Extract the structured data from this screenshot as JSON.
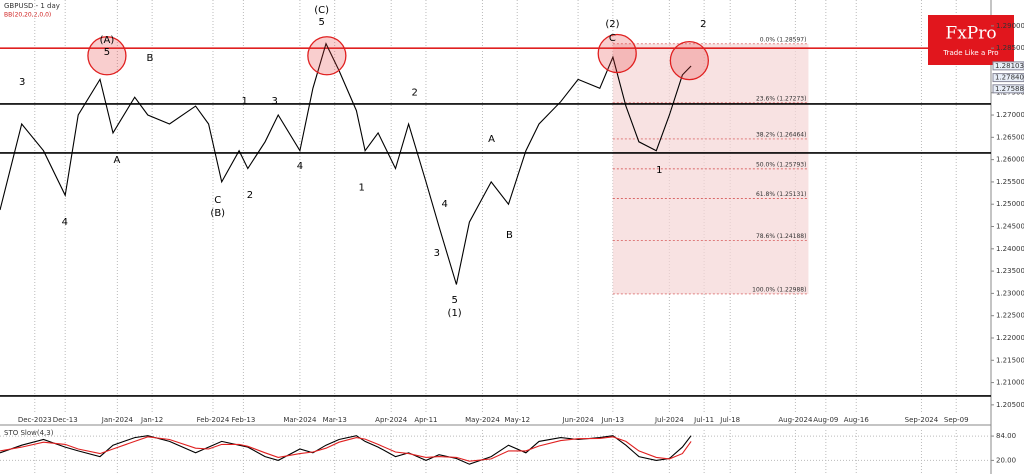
{
  "logo": {
    "name": "FxPro",
    "tagline": "Trade Like a Pro"
  },
  "chart_data": [
    {
      "type": "line",
      "title": "GBPUSD - 1 day",
      "subtitle": "BB(20,20,2,0,0)",
      "color": "#000000",
      "x": [
        0,
        5,
        10,
        15,
        18,
        23,
        26,
        31,
        34,
        39,
        45,
        48,
        51,
        55,
        57,
        61,
        64,
        69,
        72,
        75,
        78,
        82,
        84,
        87,
        91,
        94,
        98,
        101,
        105,
        108,
        113,
        117,
        121,
        124,
        129,
        133,
        138,
        141,
        144,
        147,
        151,
        154,
        157,
        159
      ],
      "values": [
        1.2487,
        1.268,
        1.262,
        1.252,
        1.27,
        1.278,
        1.266,
        1.274,
        1.27,
        1.268,
        1.272,
        1.268,
        1.255,
        1.262,
        1.258,
        1.264,
        1.27,
        1.262,
        1.276,
        1.286,
        1.28,
        1.271,
        1.262,
        1.266,
        1.258,
        1.268,
        1.255,
        1.245,
        1.232,
        1.246,
        1.255,
        1.25,
        1.262,
        1.268,
        1.273,
        1.278,
        1.276,
        1.283,
        1.272,
        1.264,
        1.262,
        1.27,
        1.279,
        1.281
      ],
      "xlim": [
        0,
        228
      ],
      "ylim": [
        1.2034,
        1.2958
      ],
      "xticks": [
        {
          "value": 8,
          "label": "Dec-2023"
        },
        {
          "value": 15,
          "label": "Dec-13"
        },
        {
          "value": 27,
          "label": "Jan-2024"
        },
        {
          "value": 35,
          "label": "Jan-12"
        },
        {
          "value": 49,
          "label": "Feb-2024"
        },
        {
          "value": 56,
          "label": "Feb-13"
        },
        {
          "value": 69,
          "label": "Mar-2024"
        },
        {
          "value": 77,
          "label": "Mar-13"
        },
        {
          "value": 90,
          "label": "Apr-2024"
        },
        {
          "value": 98,
          "label": "Apr-11"
        },
        {
          "value": 111,
          "label": "May-2024"
        },
        {
          "value": 119,
          "label": "May-12"
        },
        {
          "value": 133,
          "label": "Jun-2024"
        },
        {
          "value": 141,
          "label": "Jun-13"
        },
        {
          "value": 154,
          "label": "Jul-2024"
        },
        {
          "value": 162,
          "label": "Jul-11"
        },
        {
          "value": 168,
          "label": "Jul-18"
        },
        {
          "value": 183,
          "label": "Aug-2024"
        },
        {
          "value": 190,
          "label": "Aug-09"
        },
        {
          "value": 197,
          "label": "Aug-16"
        },
        {
          "value": 212,
          "label": "Sep-2024"
        },
        {
          "value": 220,
          "label": "Sep-09"
        }
      ],
      "yticks": [
        {
          "value": 1.205,
          "label": "1.20500"
        },
        {
          "value": 1.21,
          "label": "1.21000"
        },
        {
          "value": 1.215,
          "label": "1.21500"
        },
        {
          "value": 1.22,
          "label": "1.22000"
        },
        {
          "value": 1.225,
          "label": "1.22500"
        },
        {
          "value": 1.23,
          "label": "1.23000"
        },
        {
          "value": 1.235,
          "label": "1.23500"
        },
        {
          "value": 1.24,
          "label": "1.24000"
        },
        {
          "value": 1.245,
          "label": "1.24500"
        },
        {
          "value": 1.25,
          "label": "1.25000"
        },
        {
          "value": 1.255,
          "label": "1.25500"
        },
        {
          "value": 1.26,
          "label": "1.26000"
        },
        {
          "value": 1.265,
          "label": "1.26500"
        },
        {
          "value": 1.27,
          "label": "1.27000"
        },
        {
          "value": 1.275,
          "label": "1.27500"
        },
        {
          "value": 1.285,
          "label": "1.28500"
        },
        {
          "value": 1.29,
          "label": "1.29000"
        }
      ],
      "price_tags": [
        1.28103,
        {
          "value": 1.2784,
          "label": "1.27840"
        },
        1.27588
      ],
      "levels": [
        {
          "value": 1.285,
          "color": "#e02020"
        },
        {
          "value": 1.2725,
          "color": "#000000"
        },
        {
          "value": 1.2615,
          "color": "#000000"
        },
        {
          "value": 1.207,
          "color": "#000000"
        }
      ],
      "fib_x": [
        141,
        186
      ],
      "fib_levels": [
        {
          "label": "0.0% (1.28597)",
          "value": 1.28597
        },
        {
          "label": "23.6% (1.27273)",
          "value": 1.27273
        },
        {
          "label": "38.2% (1.26464)",
          "value": 1.26464
        },
        {
          "label": "50.0% (1.25793)",
          "value": 1.25793
        },
        {
          "label": "61.8% (1.25131)",
          "value": 1.25131
        },
        {
          "label": "78.6% (1.24188)",
          "value": 1.24188
        },
        {
          "label": "100.0% (1.22988)",
          "value": 1.22988
        }
      ],
      "annotations": [
        {
          "text": "(A)",
          "x": 24.6,
          "y": 1.2868
        },
        {
          "text": "5",
          "x": 24.6,
          "y": 1.2841
        },
        {
          "text": "3",
          "x": 5.1,
          "y": 1.2774
        },
        {
          "text": "B",
          "x": 34.5,
          "y": 1.2828
        },
        {
          "text": "A",
          "x": 26.9,
          "y": 1.2599
        },
        {
          "text": "C",
          "x": 50.1,
          "y": 1.251
        },
        {
          "text": "(B)",
          "x": 50.1,
          "y": 1.248
        },
        {
          "text": "2",
          "x": 57.5,
          "y": 1.2521
        },
        {
          "text": "1",
          "x": 56.3,
          "y": 1.2732
        },
        {
          "text": "3",
          "x": 63.2,
          "y": 1.2732
        },
        {
          "text": "4",
          "x": 69,
          "y": 1.2586
        },
        {
          "text": "(C)",
          "x": 74,
          "y": 1.2936
        },
        {
          "text": "5",
          "x": 74,
          "y": 1.2909
        },
        {
          "text": "2",
          "x": 95.4,
          "y": 1.275
        },
        {
          "text": "1",
          "x": 83.2,
          "y": 1.2537
        },
        {
          "text": "4",
          "x": 102.3,
          "y": 1.2501
        },
        {
          "text": "3",
          "x": 100.5,
          "y": 1.2391
        },
        {
          "text": "5",
          "x": 104.6,
          "y": 1.2285
        },
        {
          "text": "(1)",
          "x": 104.6,
          "y": 1.2256
        },
        {
          "text": "A",
          "x": 113.1,
          "y": 1.2646
        },
        {
          "text": "B",
          "x": 117.2,
          "y": 1.2431
        },
        {
          "text": "(2)",
          "x": 140.9,
          "y": 1.2904
        },
        {
          "text": "C",
          "x": 140.9,
          "y": 1.2873
        },
        {
          "text": "2",
          "x": 161.8,
          "y": 1.2904
        },
        {
          "text": "4",
          "x": 14.9,
          "y": 1.246
        },
        {
          "text": "1",
          "x": 151.7,
          "y": 1.2577
        }
      ],
      "highlights": [
        {
          "x": 24.6,
          "y": 1.2833
        },
        {
          "x": 75.2,
          "y": 1.2833
        },
        {
          "x": 142,
          "y": 1.2838
        },
        {
          "x": 158.6,
          "y": 1.2822
        }
      ]
    },
    {
      "type": "line",
      "title": "STO Slow(4,3)",
      "x": [
        0,
        5,
        10,
        15,
        18,
        23,
        26,
        31,
        34,
        39,
        45,
        48,
        51,
        55,
        57,
        61,
        64,
        69,
        72,
        75,
        78,
        82,
        84,
        87,
        91,
        94,
        98,
        101,
        105,
        108,
        113,
        117,
        121,
        124,
        129,
        133,
        138,
        141,
        144,
        147,
        151,
        154,
        157,
        159
      ],
      "series": [
        {
          "color": "#000000",
          "values": [
            40,
            60,
            75,
            55,
            45,
            30,
            60,
            80,
            85,
            70,
            40,
            55,
            70,
            60,
            55,
            30,
            20,
            50,
            40,
            60,
            75,
            85,
            70,
            55,
            30,
            40,
            20,
            35,
            25,
            10,
            30,
            60,
            40,
            70,
            80,
            75,
            80,
            85,
            60,
            30,
            20,
            25,
            55,
            85
          ]
        },
        {
          "color": "#e02020",
          "values": [
            45,
            55,
            68,
            62,
            50,
            38,
            50,
            70,
            82,
            75,
            52,
            50,
            62,
            62,
            57,
            40,
            28,
            38,
            42,
            52,
            68,
            80,
            76,
            62,
            42,
            38,
            28,
            30,
            28,
            18,
            24,
            45,
            45,
            58,
            72,
            77,
            78,
            82,
            70,
            45,
            28,
            24,
            38,
            70
          ]
        }
      ],
      "xlim": [
        0,
        228
      ],
      "ylim": [
        0,
        100
      ],
      "yticks": [
        {
          "value": 20,
          "label": "20.00"
        },
        {
          "value": 84,
          "label": "84.00"
        }
      ]
    }
  ]
}
